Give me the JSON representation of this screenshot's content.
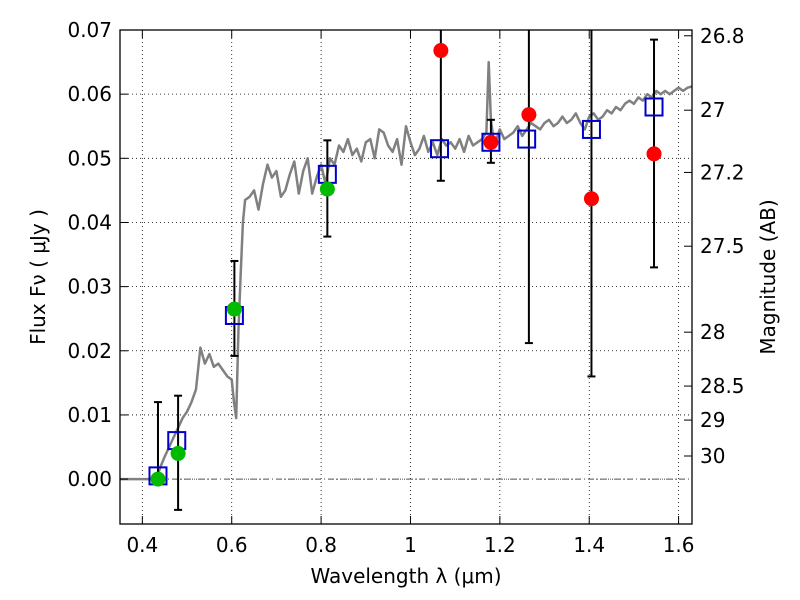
{
  "chart_data": {
    "type": "scatter",
    "xlabel": "Wavelength  λ (μm)",
    "ylabel": "Flux  Fν  ( μJy )",
    "ylabel_right": "Magnitude (AB)",
    "xlim": [
      0.35,
      1.63
    ],
    "ylim": [
      -0.007,
      0.07
    ],
    "x_ticks": [
      0.4,
      0.6,
      0.8,
      1.0,
      1.2,
      1.4,
      1.6
    ],
    "x_tick_labels": [
      "0.4",
      "0.6",
      "0.8",
      "1",
      "1.2",
      "1.4",
      "1.6"
    ],
    "y_ticks": [
      0.0,
      0.01,
      0.02,
      0.03,
      0.04,
      0.05,
      0.06,
      0.07
    ],
    "y_tick_labels": [
      "0.00",
      "0.01",
      "0.02",
      "0.03",
      "0.04",
      "0.05",
      "0.06",
      "0.07"
    ],
    "right_ticks": [
      {
        "flux": 0.0691,
        "label": "26.8"
      },
      {
        "flux": 0.0575,
        "label": "27"
      },
      {
        "flux": 0.0478,
        "label": "27.2"
      },
      {
        "flux": 0.0363,
        "label": "27.5"
      },
      {
        "flux": 0.0229,
        "label": "28"
      },
      {
        "flux": 0.0145,
        "label": "28.5"
      },
      {
        "flux": 0.0092,
        "label": "29"
      },
      {
        "flux": 0.0036,
        "label": "30"
      }
    ],
    "grid": true,
    "colors": {
      "model": "#808080",
      "model_points": "#0000cc",
      "detections": "#00bb00",
      "upper_limits": "#ff0000",
      "errorbars": "#000000",
      "zero_line": "#555555"
    },
    "series": [
      {
        "name": "model_spectrum",
        "style": "line",
        "x": [
          0.35,
          0.43,
          0.435,
          0.44,
          0.45,
          0.46,
          0.47,
          0.48,
          0.49,
          0.5,
          0.51,
          0.52,
          0.53,
          0.54,
          0.55,
          0.56,
          0.57,
          0.58,
          0.59,
          0.6,
          0.605,
          0.61,
          0.615,
          0.62,
          0.625,
          0.63,
          0.64,
          0.65,
          0.66,
          0.67,
          0.68,
          0.69,
          0.7,
          0.71,
          0.72,
          0.73,
          0.74,
          0.75,
          0.76,
          0.77,
          0.78,
          0.79,
          0.8,
          0.81,
          0.82,
          0.83,
          0.84,
          0.85,
          0.86,
          0.87,
          0.88,
          0.89,
          0.9,
          0.91,
          0.92,
          0.93,
          0.94,
          0.95,
          0.96,
          0.97,
          0.98,
          0.99,
          1.0,
          1.01,
          1.02,
          1.03,
          1.04,
          1.05,
          1.06,
          1.07,
          1.08,
          1.09,
          1.1,
          1.11,
          1.12,
          1.13,
          1.14,
          1.15,
          1.16,
          1.17,
          1.175,
          1.18,
          1.185,
          1.19,
          1.2,
          1.21,
          1.22,
          1.23,
          1.24,
          1.25,
          1.26,
          1.27,
          1.28,
          1.29,
          1.3,
          1.31,
          1.32,
          1.33,
          1.34,
          1.35,
          1.36,
          1.37,
          1.38,
          1.39,
          1.4,
          1.41,
          1.42,
          1.43,
          1.44,
          1.45,
          1.46,
          1.47,
          1.48,
          1.49,
          1.5,
          1.51,
          1.52,
          1.53,
          1.54,
          1.55,
          1.56,
          1.57,
          1.58,
          1.59,
          1.6,
          1.61,
          1.62,
          1.63
        ],
        "y": [
          0.0,
          0.0,
          0.0008,
          0.0018,
          0.0035,
          0.005,
          0.0065,
          0.008,
          0.0095,
          0.0105,
          0.012,
          0.014,
          0.0205,
          0.018,
          0.0195,
          0.0175,
          0.018,
          0.017,
          0.016,
          0.0155,
          0.012,
          0.0095,
          0.023,
          0.032,
          0.04,
          0.0435,
          0.044,
          0.045,
          0.042,
          0.046,
          0.049,
          0.047,
          0.048,
          0.044,
          0.045,
          0.0475,
          0.0495,
          0.0445,
          0.048,
          0.05,
          0.0445,
          0.047,
          0.049,
          0.046,
          0.05,
          0.049,
          0.052,
          0.051,
          0.053,
          0.0505,
          0.0515,
          0.0495,
          0.0525,
          0.053,
          0.05,
          0.0545,
          0.054,
          0.052,
          0.051,
          0.053,
          0.049,
          0.055,
          0.0525,
          0.0505,
          0.0515,
          0.0535,
          0.051,
          0.0525,
          0.0505,
          0.053,
          0.052,
          0.0525,
          0.0515,
          0.053,
          0.051,
          0.0535,
          0.052,
          0.0525,
          0.053,
          0.054,
          0.065,
          0.056,
          0.0535,
          0.0525,
          0.0545,
          0.053,
          0.0535,
          0.054,
          0.055,
          0.0535,
          0.0545,
          0.0555,
          0.055,
          0.0545,
          0.0555,
          0.056,
          0.055,
          0.0555,
          0.0565,
          0.0555,
          0.056,
          0.057,
          0.0555,
          0.0545,
          0.0565,
          0.057,
          0.056,
          0.0565,
          0.0575,
          0.057,
          0.058,
          0.0575,
          0.0585,
          0.059,
          0.0585,
          0.0595,
          0.059,
          0.06,
          0.0595,
          0.0605,
          0.06,
          0.0605,
          0.06,
          0.0605,
          0.061,
          0.0605,
          0.061,
          0.0612
        ]
      },
      {
        "name": "model_photometry",
        "style": "open_square",
        "x": [
          0.435,
          0.477,
          0.606,
          0.814,
          1.065,
          1.18,
          1.26,
          1.405,
          1.545
        ],
        "y": [
          0.0005,
          0.006,
          0.0255,
          0.0475,
          0.0515,
          0.0525,
          0.053,
          0.0545,
          0.058
        ]
      },
      {
        "name": "detections",
        "style": "filled_circle",
        "x": [
          0.435,
          0.48,
          0.606,
          0.814
        ],
        "y": [
          0.0,
          0.004,
          0.0265,
          0.0452
        ]
      },
      {
        "name": "non_detections",
        "style": "filled_circle",
        "x": [
          1.068,
          1.18,
          1.265,
          1.405,
          1.545
        ],
        "y": [
          0.0668,
          0.0525,
          0.0568,
          0.0437,
          0.0507
        ]
      },
      {
        "name": "error_bars",
        "style": "errorbar",
        "points": [
          {
            "x": 0.435,
            "lo": -0.0005,
            "hi": 0.012
          },
          {
            "x": 0.48,
            "lo": -0.0048,
            "hi": 0.013
          },
          {
            "x": 0.606,
            "lo": 0.0192,
            "hi": 0.034
          },
          {
            "x": 0.814,
            "lo": 0.0378,
            "hi": 0.0528
          },
          {
            "x": 1.068,
            "lo": 0.0465,
            "hi": 0.072
          },
          {
            "x": 1.18,
            "lo": 0.0493,
            "hi": 0.056
          },
          {
            "x": 1.265,
            "lo": 0.0212,
            "hi": 0.072
          },
          {
            "x": 1.405,
            "lo": 0.016,
            "hi": 0.072
          },
          {
            "x": 1.545,
            "lo": 0.033,
            "hi": 0.0685
          }
        ]
      }
    ]
  }
}
